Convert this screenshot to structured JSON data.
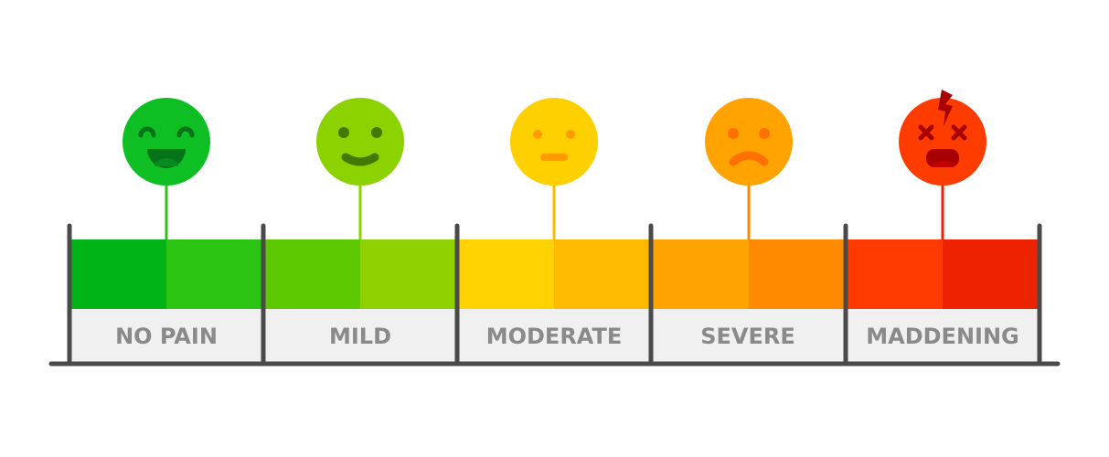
{
  "scale": [
    {
      "label": "NO PAIN",
      "face": "laughing-face",
      "face_color": "#0dbf22",
      "feature_color": "#04731a",
      "bar_colors": [
        "#00b418",
        "#2cc413"
      ]
    },
    {
      "label": "MILD",
      "face": "smiling-face",
      "face_color": "#8cd100",
      "feature_color": "#417a00",
      "bar_colors": [
        "#5cc800",
        "#8dd100"
      ]
    },
    {
      "label": "MODERATE",
      "face": "neutral-face",
      "face_color": "#ffd000",
      "feature_color": "#ff9a00",
      "bar_colors": [
        "#ffd200",
        "#ffba00"
      ]
    },
    {
      "label": "SEVERE",
      "face": "sad-face",
      "face_color": "#ffa300",
      "feature_color": "#ff7000",
      "bar_colors": [
        "#ffa300",
        "#ff8a00"
      ]
    },
    {
      "label": "MADDENING",
      "face": "dizzy-pain-face",
      "face_color": "#ff3c00",
      "feature_color": "#a80000",
      "bar_colors": [
        "#ff3a00",
        "#ef2200"
      ]
    }
  ],
  "colors": {
    "label_bg": "#f0f0f0",
    "label_text": "#8a8a8a",
    "frame": "#4a4a4a"
  }
}
